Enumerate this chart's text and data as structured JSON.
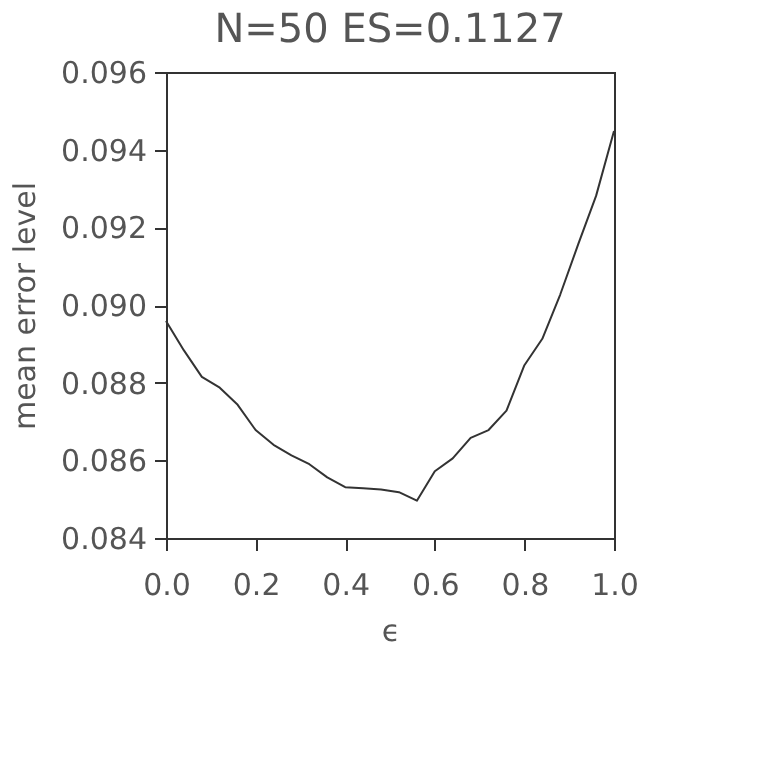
{
  "chart_data": {
    "type": "line",
    "title": "N=50   ES=0.1127",
    "xlabel": "ϵ",
    "ylabel": "mean error level",
    "x": [
      0.0,
      0.04,
      0.08,
      0.12,
      0.16,
      0.2,
      0.24,
      0.28,
      0.32,
      0.36,
      0.4,
      0.44,
      0.48,
      0.52,
      0.56,
      0.6,
      0.64,
      0.68,
      0.72,
      0.76,
      0.8,
      0.84,
      0.88,
      0.92,
      0.96,
      1.0
    ],
    "series": [
      {
        "color": "#333333",
        "values": [
          0.08959,
          0.08883,
          0.08815,
          0.08787,
          0.08743,
          0.08678,
          0.0864,
          0.08613,
          0.0859,
          0.08556,
          0.08531,
          0.08528,
          0.08525,
          0.08518,
          0.08496,
          0.08572,
          0.08605,
          0.08658,
          0.08678,
          0.08728,
          0.08845,
          0.08913,
          0.09027,
          0.09156,
          0.09281,
          0.09448
        ]
      }
    ],
    "xlim": [
      0.0,
      1.0
    ],
    "xticks": [
      {
        "value": 0,
        "label": "0.0"
      },
      0.2,
      0.4,
      0.6,
      0.8,
      {
        "value": 1,
        "label": "1.0"
      }
    ],
    "ylim": [
      0.084,
      0.096
    ],
    "yticks": [
      0.084,
      0.086,
      0.088,
      {
        "value": 0.09,
        "label": "0.090"
      },
      0.092,
      0.094,
      0.096
    ],
    "grid": false,
    "marker": "none",
    "line_style": "solid"
  }
}
